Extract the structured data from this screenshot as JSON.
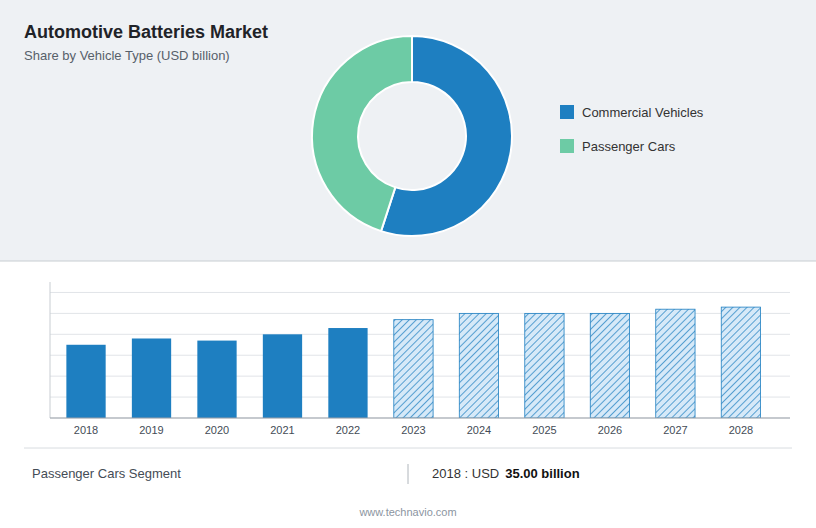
{
  "chart_data": [
    {
      "type": "pie",
      "title": "Automotive Batteries Market",
      "subtitle": "Share by Vehicle Type (USD billion)",
      "categories": [
        "Commercial Vehicles",
        "Passenger Cars"
      ],
      "values": [
        55,
        45
      ],
      "colors": [
        "#1e7fc1",
        "#6dcba5"
      ],
      "legend": "right"
    },
    {
      "type": "bar",
      "x": [
        2018,
        2019,
        2020,
        2021,
        2022,
        2023,
        2024,
        2025,
        2026,
        2027,
        2028
      ],
      "series": [
        {
          "color": "#1e7fc1",
          "values": [
            35,
            38,
            37,
            40,
            43,
            null,
            null,
            null,
            null,
            null,
            null
          ]
        },
        {
          "color": "#d6e9f8",
          "values": [
            null,
            null,
            null,
            null,
            null,
            47,
            50,
            50,
            50,
            52,
            53
          ]
        }
      ],
      "stacked": true,
      "xlim": [
        2017.45,
        2028.75
      ],
      "xticks": [
        2018,
        2019,
        2020,
        2021,
        2022,
        2023,
        2024,
        2025,
        2026,
        2027,
        2028
      ],
      "ylim": [
        0,
        65
      ],
      "yticks": [
        0,
        10,
        20,
        30,
        40,
        50,
        60
      ],
      "grid": true,
      "tick_labels": "x",
      "annotations": [
        "Passenger Cars Segment",
        "2018 : USD",
        "35.00 billion",
        "www.technavio.com"
      ]
    }
  ]
}
